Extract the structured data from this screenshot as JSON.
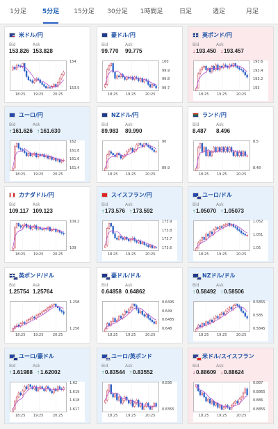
{
  "tabs": [
    "1分足",
    "5分足",
    "15分足",
    "30分足",
    "1時間足",
    "日足",
    "週足",
    "月足"
  ],
  "active_tab": "5分足",
  "colors": {
    "up": "#1f8a4c",
    "down": "#c0283c",
    "ma": "#b44fd0",
    "candle_up": "#c0283c",
    "candle_down": "#2d63c8",
    "pair_text": "#1c4fa3"
  },
  "cards": [
    {
      "pair": "米ドル/円",
      "flag": "us",
      "trend": "none",
      "bid_label": "Bid",
      "ask_label": "Ask",
      "bid": "153.826",
      "ask": "153.828",
      "arrow": "",
      "ticks_y": [
        "154",
        "153.5"
      ],
      "ticks_x": [
        "18:25",
        "19:25",
        "20:25"
      ],
      "close": [
        153.95,
        153.9,
        154.0,
        153.98,
        153.96,
        154.05,
        153.85,
        153.7,
        153.62,
        153.6,
        153.55,
        153.6,
        153.65,
        153.62,
        153.55,
        153.5,
        153.45,
        153.4,
        153.42,
        153.4,
        153.45,
        153.5,
        153.45,
        153.55,
        153.65,
        153.75,
        153.82
      ]
    },
    {
      "pair": "豪ドル/円",
      "flag": "au",
      "trend": "none",
      "bid_label": "Bid",
      "ask_label": "Ask",
      "bid": "99.770",
      "ask": "99.775",
      "arrow": "",
      "ticks_y": [
        "100",
        "99.9",
        "99.8",
        "99.7"
      ],
      "ticks_x": [
        "18:25",
        "19:25",
        "20:25"
      ],
      "close": [
        99.8,
        99.92,
        99.95,
        99.97,
        99.9,
        99.85,
        99.87,
        99.86,
        99.88,
        99.86,
        99.84,
        99.86,
        99.85,
        99.86,
        99.84,
        99.86,
        99.85,
        99.83,
        99.85,
        99.82,
        99.84,
        99.83,
        99.8,
        99.78,
        99.8,
        99.79,
        99.77
      ]
    },
    {
      "pair": "英ポンド/円",
      "flag": "gb",
      "trend": "down",
      "bid_label": "Bid",
      "ask_label": "Ask",
      "bid": "193.450",
      "ask": "193.457",
      "arrow": "↓",
      "ticks_y": [
        "193.6",
        "193.4",
        "193.2",
        "193"
      ],
      "ticks_x": [
        "18:25",
        "19:25",
        "20:25"
      ],
      "close": [
        193.3,
        193.5,
        193.55,
        193.58,
        193.6,
        193.55,
        193.57,
        193.52,
        193.6,
        193.55,
        193.62,
        193.55,
        193.6,
        193.58,
        193.62,
        193.6,
        193.58,
        193.62,
        193.6,
        193.64,
        193.6,
        193.58,
        193.56,
        193.55,
        193.52,
        193.48,
        193.45
      ]
    },
    {
      "pair": "ユーロ/円",
      "flag": "eu",
      "trend": "up",
      "bid_label": "Bid",
      "ask_label": "Ask",
      "bid": "161.626",
      "ask": "161.630",
      "arrow": "↑",
      "ticks_y": [
        "162",
        "161.8",
        "161.6",
        "161.4"
      ],
      "ticks_x": [
        "18:25",
        "19:25",
        "20:25"
      ],
      "close": [
        161.5,
        161.85,
        161.9,
        161.82,
        161.8,
        161.78,
        161.75,
        161.7,
        161.74,
        161.7,
        161.72,
        161.74,
        161.68,
        161.72,
        161.7,
        161.72,
        161.68,
        161.7,
        161.66,
        161.68,
        161.64,
        161.66,
        161.62,
        161.64,
        161.6,
        161.62,
        161.63
      ]
    },
    {
      "pair": "NZドル/円",
      "flag": "nz",
      "trend": "none",
      "bid_label": "Bid",
      "ask_label": "Ask",
      "bid": "89.983",
      "ask": "89.990",
      "arrow": "",
      "ticks_y": [
        "90",
        "89.9"
      ],
      "ticks_x": [
        "18:25",
        "19:25",
        "20:25"
      ],
      "close": [
        89.88,
        89.96,
        89.98,
        89.97,
        89.96,
        89.95,
        89.97,
        89.96,
        89.94,
        89.95,
        89.96,
        89.98,
        89.99,
        90.0,
        89.98,
        89.99,
        90.02,
        90.03,
        90.02,
        90.01,
        90.03,
        90.02,
        90.01,
        90.0,
        89.99,
        89.98,
        89.98
      ]
    },
    {
      "pair": "ランド/円",
      "flag": "za",
      "trend": "none",
      "bid_label": "Bid",
      "ask_label": "Ask",
      "bid": "8.487",
      "ask": "8.496",
      "arrow": "",
      "ticks_y": [
        "8.5",
        "8.48"
      ],
      "ticks_x": [
        "18:25",
        "19:25",
        "20:25"
      ],
      "close": [
        8.46,
        8.51,
        8.52,
        8.5,
        8.51,
        8.49,
        8.5,
        8.49,
        8.5,
        8.51,
        8.5,
        8.51,
        8.5,
        8.51,
        8.5,
        8.51,
        8.5,
        8.51,
        8.5,
        8.49,
        8.5,
        8.49,
        8.5,
        8.49,
        8.5,
        8.49,
        8.49
      ]
    },
    {
      "pair": "カナダドル/円",
      "flag": "ca",
      "trend": "none",
      "bid_label": "Bid",
      "ask_label": "Ask",
      "bid": "109.117",
      "ask": "109.123",
      "arrow": "",
      "ticks_y": [
        "109.2",
        "109"
      ],
      "ticks_x": [
        "18:25",
        "19:25",
        "20:25"
      ],
      "close": [
        108.95,
        109.2,
        109.25,
        109.22,
        109.2,
        109.22,
        109.24,
        109.2,
        109.22,
        109.18,
        109.2,
        109.22,
        109.18,
        109.2,
        109.18,
        109.17,
        109.19,
        109.18,
        109.2,
        109.16,
        109.17,
        109.18,
        109.15,
        109.16,
        109.14,
        109.13,
        109.12
      ]
    },
    {
      "pair": "スイスフラン/円",
      "flag": "ch",
      "trend": "up",
      "bid_label": "Bid",
      "ask_label": "Ask",
      "bid": "173.576",
      "ask": "173.592",
      "arrow": "↑",
      "ticks_y": [
        "173.9",
        "173.8",
        "173.7",
        "173.6"
      ],
      "ticks_x": [
        "18:25",
        "19:25",
        "20:25"
      ],
      "close": [
        173.62,
        173.85,
        173.92,
        173.88,
        173.78,
        173.72,
        173.7,
        173.74,
        173.72,
        173.7,
        173.73,
        173.7,
        173.68,
        173.7,
        173.72,
        173.68,
        173.66,
        173.68,
        173.64,
        173.66,
        173.63,
        173.62,
        173.6,
        173.62,
        173.58,
        173.59,
        173.58
      ]
    },
    {
      "pair": "ユーロ/ドル",
      "flag": "eu-us",
      "trend": "up",
      "bid_label": "Bid",
      "ask_label": "Ask",
      "bid": "1.05070",
      "ask": "1.05073",
      "arrow": "↑",
      "ticks_y": [
        "1.052",
        "1.051",
        "1.05"
      ],
      "ticks_x": [
        "18:25",
        "19:25",
        "20:25"
      ],
      "close": [
        1.0495,
        1.05,
        1.0502,
        1.0505,
        1.0503,
        1.0508,
        1.0506,
        1.051,
        1.0508,
        1.0512,
        1.0514,
        1.0513,
        1.0515,
        1.0514,
        1.0516,
        1.0517,
        1.0518,
        1.0516,
        1.0517,
        1.0515,
        1.0514,
        1.0512,
        1.0511,
        1.0509,
        1.0508,
        1.0507,
        1.0507
      ]
    },
    {
      "pair": "英ポンド/ドル",
      "flag": "gb-us",
      "trend": "none",
      "bid_label": "Bid",
      "ask_label": "Ask",
      "bid": "1.25754",
      "ask": "1.25764",
      "arrow": "",
      "ticks_y": [
        "1.258",
        "1.256"
      ],
      "ticks_x": [
        "18:25",
        "19:25",
        "20:25"
      ],
      "close": [
        1.2552,
        1.2556,
        1.2558,
        1.2556,
        1.256,
        1.2562,
        1.256,
        1.2564,
        1.2566,
        1.2568,
        1.257,
        1.2568,
        1.2572,
        1.2574,
        1.2576,
        1.2578,
        1.258,
        1.2582,
        1.2584,
        1.2586,
        1.2588,
        1.259,
        1.2586,
        1.2584,
        1.258,
        1.2578,
        1.2575
      ]
    },
    {
      "pair": "豪ドル/ドル",
      "flag": "au-us",
      "trend": "none",
      "bid_label": "Bid",
      "ask_label": "Ask",
      "bid": "0.64858",
      "ask": "0.64862",
      "arrow": "",
      "ticks_y": [
        "0.6495",
        "0.649",
        "0.6485",
        "0.648"
      ],
      "ticks_x": [
        "18:25",
        "19:25",
        "20:25"
      ],
      "close": [
        0.6482,
        0.6485,
        0.6484,
        0.6486,
        0.6488,
        0.6486,
        0.6487,
        0.6489,
        0.6488,
        0.649,
        0.6492,
        0.6491,
        0.6493,
        0.6494,
        0.6496,
        0.6495,
        0.6493,
        0.6491,
        0.6492,
        0.649,
        0.6489,
        0.649,
        0.6488,
        0.6487,
        0.6486,
        0.6485,
        0.6486
      ]
    },
    {
      "pair": "NZドル/ドル",
      "flag": "nz-us",
      "trend": "up",
      "bid_label": "Bid",
      "ask_label": "Ask",
      "bid": "0.58492",
      "ask": "0.58506",
      "arrow": "↑",
      "ticks_y": [
        "0.5855",
        "0.585",
        "0.5845"
      ],
      "ticks_x": [
        "18:25",
        "19:25",
        "20:25"
      ],
      "close": [
        0.5843,
        0.5845,
        0.5844,
        0.5846,
        0.5845,
        0.5847,
        0.5846,
        0.5848,
        0.5847,
        0.5849,
        0.585,
        0.5849,
        0.5851,
        0.5852,
        0.5851,
        0.5853,
        0.5854,
        0.5855,
        0.5854,
        0.5856,
        0.5857,
        0.5856,
        0.5855,
        0.5853,
        0.5852,
        0.585,
        0.5849
      ]
    },
    {
      "pair": "ユーロ/豪ドル",
      "flag": "eu-au",
      "trend": "up",
      "bid_label": "Bid",
      "ask_label": "Ask",
      "bid": "1.61988",
      "ask": "1.62002",
      "arrow": "↑",
      "ticks_y": [
        "1.62",
        "1.619",
        "1.618",
        "1.617"
      ],
      "ticks_x": [
        "18:25",
        "19:25",
        "20:25"
      ],
      "close": [
        1.6178,
        1.6186,
        1.619,
        1.6194,
        1.6192,
        1.6196,
        1.62,
        1.6198,
        1.6202,
        1.62,
        1.6198,
        1.62,
        1.6196,
        1.6198,
        1.62,
        1.6198,
        1.6196,
        1.62,
        1.6198,
        1.6196,
        1.6194,
        1.6198,
        1.6196,
        1.62,
        1.6198,
        1.6197,
        1.6199
      ]
    },
    {
      "pair": "ユーロ/英ポンド",
      "flag": "eu-gb",
      "trend": "up",
      "bid_label": "Bid",
      "ask_label": "Ask",
      "bid": "0.83544",
      "ask": "0.83552",
      "arrow": "↑",
      "ticks_y": [
        "0.836",
        "0.8355"
      ],
      "ticks_x": [
        "18:25",
        "19:25",
        "20:25"
      ],
      "close": [
        0.8356,
        0.8359,
        0.8361,
        0.8358,
        0.8357,
        0.8358,
        0.8356,
        0.8357,
        0.8355,
        0.8356,
        0.8357,
        0.8356,
        0.8355,
        0.8356,
        0.8354,
        0.8355,
        0.8356,
        0.8354,
        0.8355,
        0.8353,
        0.8354,
        0.8355,
        0.8354,
        0.8353,
        0.8354,
        0.8355,
        0.8354
      ]
    },
    {
      "pair": "米ドル/スイスフラン",
      "flag": "us-ch",
      "trend": "down",
      "bid_label": "Bid",
      "ask_label": "Ask",
      "bid": "0.88609",
      "ask": "0.88624",
      "arrow": "↓",
      "ticks_y": [
        "0.887",
        "0.8865",
        "0.886",
        "0.8855"
      ],
      "ticks_x": [
        "18:25",
        "19:25",
        "20:25"
      ],
      "close": [
        0.8866,
        0.8863,
        0.8861,
        0.8862,
        0.886,
        0.8858,
        0.8859,
        0.8857,
        0.8858,
        0.8856,
        0.8857,
        0.8855,
        0.8856,
        0.8854,
        0.8855,
        0.8856,
        0.8855,
        0.8854,
        0.8856,
        0.8857,
        0.8858,
        0.8857,
        0.8859,
        0.886,
        0.8862,
        0.8864,
        0.8861
      ]
    }
  ]
}
